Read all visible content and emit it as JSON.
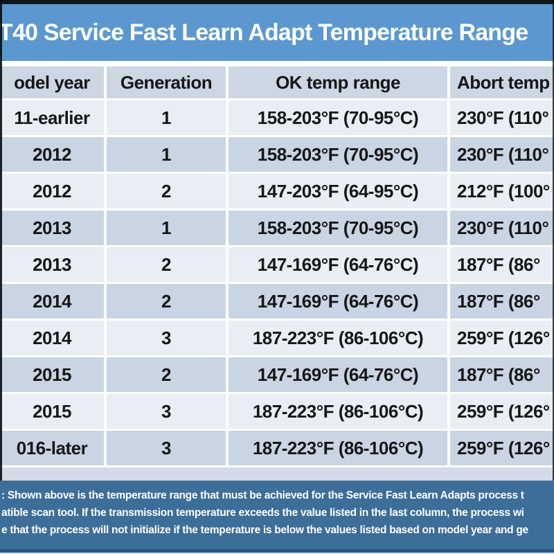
{
  "title": "T40  Service Fast Learn Adapt Temperature Range",
  "table": {
    "headers": [
      "odel year",
      "Generation",
      "OK temp range",
      "Abort temp"
    ],
    "rows": [
      [
        "11-earlier",
        "1",
        "158-203°F (70-95°C)",
        "230°F (110°"
      ],
      [
        "2012",
        "1",
        "158-203°F (70-95°C)",
        "230°F (110°"
      ],
      [
        "2012",
        "2",
        "147-203°F (64-95°C)",
        "212°F (100°"
      ],
      [
        "2013",
        "1",
        "158-203°F (70-95°C)",
        "230°F (110°"
      ],
      [
        "2013",
        "2",
        "147-169°F (64-76°C)",
        "187°F (86°"
      ],
      [
        "2014",
        "2",
        "147-169°F (64-76°C)",
        "187°F (86°"
      ],
      [
        "2014",
        "3",
        "187-223°F (86-106°C)",
        "259°F (126°"
      ],
      [
        "2015",
        "2",
        "147-169°F (64-76°C)",
        "187°F (86°"
      ],
      [
        "2015",
        "3",
        "187-223°F (86-106°C)",
        "259°F (126°"
      ],
      [
        "016-later",
        "3",
        "187-223°F (86-106°C)",
        "259°F (126°"
      ]
    ]
  },
  "note": {
    "lines": [
      ": Shown above is the temperature range that must be achieved for the Service Fast Learn Adapts process t",
      "atible scan tool.  If the transmission temperature exceeds the value listed in the last column, the process wi",
      "e that the process will not initialize if the temperature is below the values listed based on model year and ge"
    ]
  },
  "colors": {
    "title_bar": "#5b98cf",
    "header_bg": "#ccd7e3",
    "row_light": "#e9edf4",
    "row_dark": "#c9d5e3",
    "footer_band": "#d2dbe7",
    "note_bg": "#3d6d99",
    "bottom_strip": "#2a547c",
    "text_dark": "#161616"
  }
}
